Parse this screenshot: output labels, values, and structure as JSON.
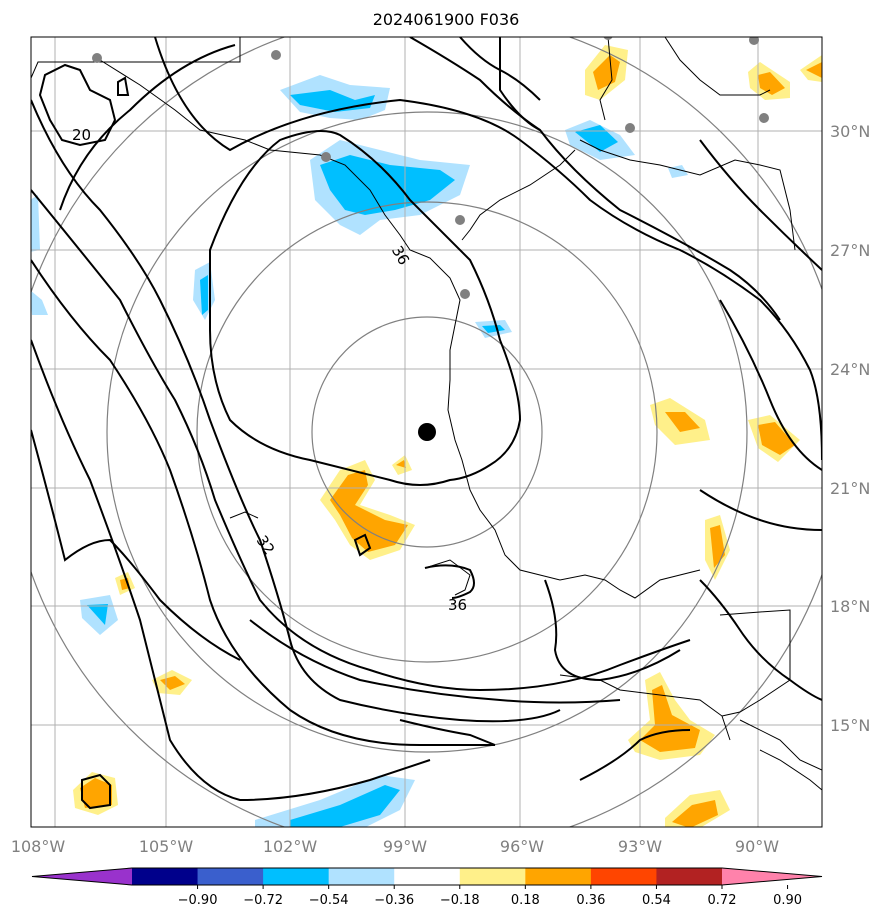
{
  "title": "2024061900 F036",
  "map": {
    "lon_range": [
      -108.5,
      -87.8
    ],
    "lat_range": [
      12.5,
      32.5
    ],
    "lon_ticks": [
      "108°W",
      "105°W",
      "102°W",
      "99°W",
      "96°W",
      "93°W",
      "90°W"
    ],
    "lat_ticks": [
      "30°N",
      "27°N",
      "24°N",
      "21°N",
      "18°N",
      "15°N"
    ],
    "contour_labels": [
      "20",
      "36",
      "32",
      "36"
    ],
    "center_marker": {
      "lon": -98.1,
      "lat": 22.4
    },
    "range_ring_count": 4
  },
  "colorbar": {
    "ticks": [
      "−0.90",
      "−0.72",
      "−0.54",
      "−0.36",
      "−0.18",
      "0.18",
      "0.36",
      "0.54",
      "0.72",
      "0.90"
    ],
    "colors": [
      "#9932cc",
      "#00008b",
      "#3a5fcd",
      "#00bfff",
      "#b0e2ff",
      "#ffffff",
      "#fff08a",
      "#ffa500",
      "#ff4500",
      "#b22222",
      "#ff82ab"
    ]
  },
  "fill_colors": {
    "blue_light": "#b0e2ff",
    "blue": "#00bfff",
    "yellow": "#fff08a",
    "orange": "#ffa500"
  }
}
